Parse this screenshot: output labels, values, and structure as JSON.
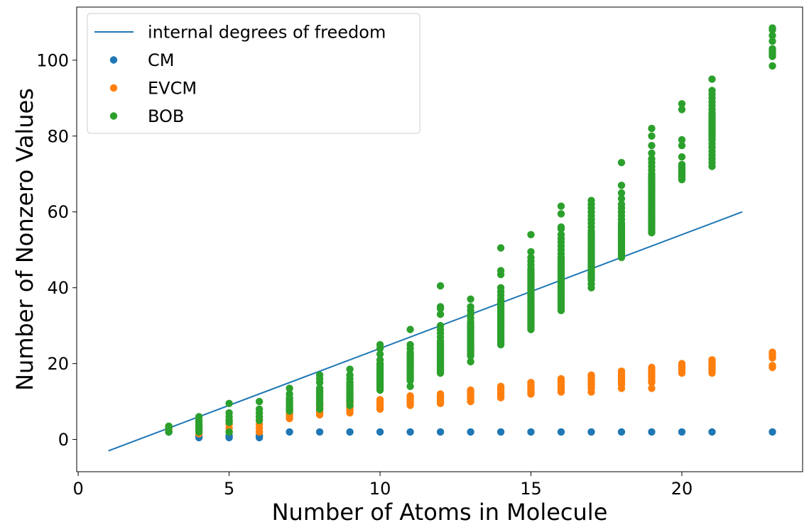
{
  "chart_data": {
    "type": "scatter",
    "title": "",
    "xlabel": "Number of Atoms in Molecule",
    "ylabel": "Number of Nonzero Values",
    "xlim": [
      -0.05,
      24.0
    ],
    "ylim": [
      -8.5,
      114.0
    ],
    "x_ticks": [
      0,
      5,
      10,
      15,
      20
    ],
    "y_ticks": [
      0,
      20,
      40,
      60,
      80,
      100
    ],
    "grid": false,
    "legend_position": "top-left",
    "line_series": [
      {
        "name": "internal degrees of freedom",
        "color": "#1f77b4",
        "x": [
          1,
          22
        ],
        "y": [
          -3,
          60
        ]
      }
    ],
    "scatter_series": [
      {
        "name": "CM",
        "color": "#1f77b4",
        "points": [
          {
            "x": 3,
            "values": [
              2,
              2,
              2
            ]
          },
          {
            "x": 4,
            "values": [
              0.5,
              1,
              2
            ]
          },
          {
            "x": 5,
            "values": [
              0.5,
              1,
              2
            ]
          },
          {
            "x": 6,
            "values": [
              0.5,
              1,
              2
            ]
          },
          {
            "x": 7,
            "values": [
              2
            ]
          },
          {
            "x": 8,
            "values": [
              2
            ]
          },
          {
            "x": 9,
            "values": [
              2
            ]
          },
          {
            "x": 10,
            "values": [
              2
            ]
          },
          {
            "x": 11,
            "values": [
              2
            ]
          },
          {
            "x": 12,
            "values": [
              2
            ]
          },
          {
            "x": 13,
            "values": [
              2
            ]
          },
          {
            "x": 14,
            "values": [
              2
            ]
          },
          {
            "x": 15,
            "values": [
              2
            ]
          },
          {
            "x": 16,
            "values": [
              2
            ]
          },
          {
            "x": 17,
            "values": [
              2
            ]
          },
          {
            "x": 18,
            "values": [
              2
            ]
          },
          {
            "x": 19,
            "values": [
              2
            ]
          },
          {
            "x": 20,
            "values": [
              2
            ]
          },
          {
            "x": 21,
            "values": [
              2
            ]
          },
          {
            "x": 23,
            "values": [
              2
            ]
          }
        ]
      },
      {
        "name": "EVCM",
        "color": "#ff7f0e",
        "points": [
          {
            "x": 3,
            "values": [
              2.5,
              3
            ]
          },
          {
            "x": 4,
            "values": [
              1.5,
              2,
              3,
              3.5
            ]
          },
          {
            "x": 5,
            "values": [
              2,
              3,
              4,
              5
            ]
          },
          {
            "x": 6,
            "values": [
              2,
              3,
              4,
              5,
              6
            ]
          },
          {
            "x": 7,
            "values": [
              5.5,
              6,
              6.5,
              7,
              7.5,
              8
            ]
          },
          {
            "x": 8,
            "values": [
              6.5,
              7,
              7.5,
              8,
              8.5,
              9,
              9.5
            ]
          },
          {
            "x": 9,
            "values": [
              7,
              7.5,
              8,
              8.5,
              9,
              9.5,
              10,
              10.5
            ]
          },
          {
            "x": 10,
            "values": [
              8,
              8.5,
              9,
              9.5,
              10,
              10.5
            ]
          },
          {
            "x": 11,
            "values": [
              9,
              9.5,
              10,
              10.5,
              11,
              11.5
            ]
          },
          {
            "x": 12,
            "values": [
              9.5,
              10,
              10.5,
              11,
              11.5,
              12
            ]
          },
          {
            "x": 13,
            "values": [
              10,
              10.5,
              11,
              11.5,
              12,
              12.5,
              13
            ]
          },
          {
            "x": 14,
            "values": [
              11,
              11.5,
              12,
              12.5,
              13,
              13.5,
              14
            ]
          },
          {
            "x": 15,
            "values": [
              12,
              12.5,
              13,
              13.5,
              14,
              14.5,
              15
            ]
          },
          {
            "x": 16,
            "values": [
              12.5,
              13,
              13.5,
              14,
              14.5,
              15,
              15.5,
              16
            ]
          },
          {
            "x": 17,
            "values": [
              12.5,
              13.5,
              14,
              14.5,
              15,
              15.5,
              16,
              16.5,
              17
            ]
          },
          {
            "x": 18,
            "values": [
              13.5,
              14.5,
              15,
              15.5,
              16,
              16.5,
              17,
              17.5,
              18
            ]
          },
          {
            "x": 19,
            "values": [
              13.5,
              15,
              15.5,
              16,
              16.5,
              17,
              17.5,
              18,
              18.5,
              19
            ]
          },
          {
            "x": 20,
            "values": [
              17.5,
              18,
              18.5,
              19,
              19.5,
              20
            ]
          },
          {
            "x": 21,
            "values": [
              17.5,
              18,
              18.5,
              19,
              19.5,
              20,
              20.5,
              21
            ]
          },
          {
            "x": 23,
            "values": [
              19,
              19.5,
              21.5,
              22,
              22.5,
              23
            ]
          }
        ]
      },
      {
        "name": "BOB",
        "color": "#2ca02c",
        "points": [
          {
            "x": 3,
            "values": [
              2,
              3,
              3.5
            ]
          },
          {
            "x": 4,
            "values": [
              2,
              2.5,
              3,
              3.5,
              4,
              4.5,
              5,
              6
            ]
          },
          {
            "x": 5,
            "values": [
              2,
              4.5,
              5,
              6,
              7,
              9.5
            ]
          },
          {
            "x": 6,
            "values": [
              5,
              6,
              7,
              8,
              10
            ]
          },
          {
            "x": 7,
            "values": [
              7.5,
              8,
              8.5,
              9,
              9.5,
              10,
              10.5,
              11,
              12,
              13.5
            ]
          },
          {
            "x": 8,
            "values": [
              8,
              9,
              9.5,
              10,
              10.5,
              11,
              11.5,
              12,
              12.5,
              13,
              13.5,
              15,
              16,
              17
            ]
          },
          {
            "x": 9,
            "values": [
              9,
              10,
              10.5,
              11,
              11.5,
              12,
              12.5,
              13,
              13.5,
              14,
              14.5,
              15,
              16,
              17,
              18.5
            ]
          },
          {
            "x": 10,
            "values": [
              13,
              13.5,
              14,
              14.5,
              15,
              15.5,
              16,
              16.5,
              17,
              17.5,
              18,
              18.5,
              19,
              19.5,
              20,
              21,
              22.5,
              24,
              25
            ]
          },
          {
            "x": 11,
            "values": [
              14,
              15.5,
              16,
              16.5,
              17,
              17.5,
              18,
              18.5,
              19,
              19.5,
              20,
              20.5,
              21,
              21.5,
              22,
              22.5,
              23,
              24,
              25,
              29
            ]
          },
          {
            "x": 12,
            "values": [
              17.5,
              18,
              18.5,
              19,
              19.5,
              20,
              20.5,
              21,
              21.5,
              22,
              22.5,
              23,
              23.5,
              24,
              24.5,
              25,
              25.5,
              26,
              27,
              28,
              29,
              30,
              33,
              34.5,
              35,
              40.5
            ]
          },
          {
            "x": 13,
            "values": [
              20.5,
              22,
              22.5,
              23,
              23.5,
              24,
              24.5,
              25,
              25.5,
              26,
              26.5,
              27,
              27.5,
              28,
              28.5,
              29,
              29.5,
              30,
              30.5,
              31,
              32,
              33,
              34,
              35,
              37
            ]
          },
          {
            "x": 14,
            "values": [
              25,
              25.5,
              26,
              26.5,
              27,
              27.5,
              28,
              28.5,
              29,
              29.5,
              30,
              30.5,
              31,
              31.5,
              32,
              32.5,
              33,
              33.5,
              34,
              34.5,
              35,
              35.5,
              36,
              36.5,
              37,
              38,
              39,
              40,
              43.5,
              44.5,
              50.5
            ]
          },
          {
            "x": 15,
            "values": [
              29,
              29.5,
              30,
              30.5,
              31,
              31.5,
              32,
              32.5,
              33,
              33.5,
              34,
              34.5,
              35,
              35.5,
              36,
              36.5,
              37,
              37.5,
              38,
              38.5,
              39,
              39.5,
              40,
              40.5,
              41,
              41.5,
              42,
              42.5,
              43,
              43.5,
              44,
              44.5,
              45,
              46,
              47,
              48,
              49.5,
              54
            ]
          },
          {
            "x": 16,
            "values": [
              34,
              34.5,
              35,
              35.5,
              36,
              36.5,
              37,
              37.5,
              38,
              38.5,
              39,
              39.5,
              40,
              40.5,
              41,
              41.5,
              42,
              42.5,
              43,
              43.5,
              44,
              44.5,
              45,
              45.5,
              46,
              46.5,
              47,
              47.5,
              48,
              49,
              50,
              51,
              52,
              53,
              54,
              55.5,
              56,
              59.5,
              61.5
            ]
          },
          {
            "x": 17,
            "values": [
              40,
              41,
              42,
              42.5,
              43,
              43.5,
              44,
              44.5,
              45,
              45.5,
              46,
              46.5,
              47,
              47.5,
              48,
              48.5,
              49,
              49.5,
              50,
              50.5,
              51,
              51.5,
              52,
              52.5,
              53,
              53.5,
              54,
              54.5,
              55,
              56,
              57,
              58,
              59,
              60,
              61,
              62,
              63
            ]
          },
          {
            "x": 18,
            "values": [
              48,
              48.5,
              49,
              49.5,
              50,
              50.5,
              51,
              51.5,
              52,
              52.5,
              53,
              53.5,
              54,
              54.5,
              55,
              55.5,
              56,
              56.5,
              57,
              58,
              59,
              60,
              61,
              62,
              63.5,
              65,
              67,
              73
            ]
          },
          {
            "x": 19,
            "values": [
              54.5,
              55,
              55.5,
              56,
              56.5,
              57,
              57.5,
              58,
              58.5,
              59,
              59.5,
              60,
              60.5,
              61,
              61.5,
              62,
              62.5,
              63,
              63.5,
              64,
              64.5,
              65,
              65.5,
              66,
              66.5,
              67,
              67.5,
              68,
              68.5,
              69,
              69.5,
              70,
              71,
              72,
              73,
              74,
              75.5,
              77.5,
              80,
              82
            ]
          },
          {
            "x": 20,
            "values": [
              68.5,
              69,
              69.5,
              70,
              70.5,
              71,
              71.5,
              72,
              72.5,
              74.5,
              77.5,
              79,
              87,
              88.5
            ]
          },
          {
            "x": 21,
            "values": [
              72,
              73,
              74,
              75,
              76,
              77,
              78,
              79,
              79.5,
              80,
              80.5,
              81,
              81.5,
              82,
              82.5,
              83,
              83.5,
              84,
              84.5,
              85,
              85.5,
              86,
              87,
              88,
              89,
              90,
              91,
              92,
              95
            ]
          },
          {
            "x": 23,
            "values": [
              98.5,
              101,
              101.5,
              102,
              102.5,
              103,
              105,
              106.5,
              108,
              108.5
            ]
          }
        ]
      }
    ]
  }
}
